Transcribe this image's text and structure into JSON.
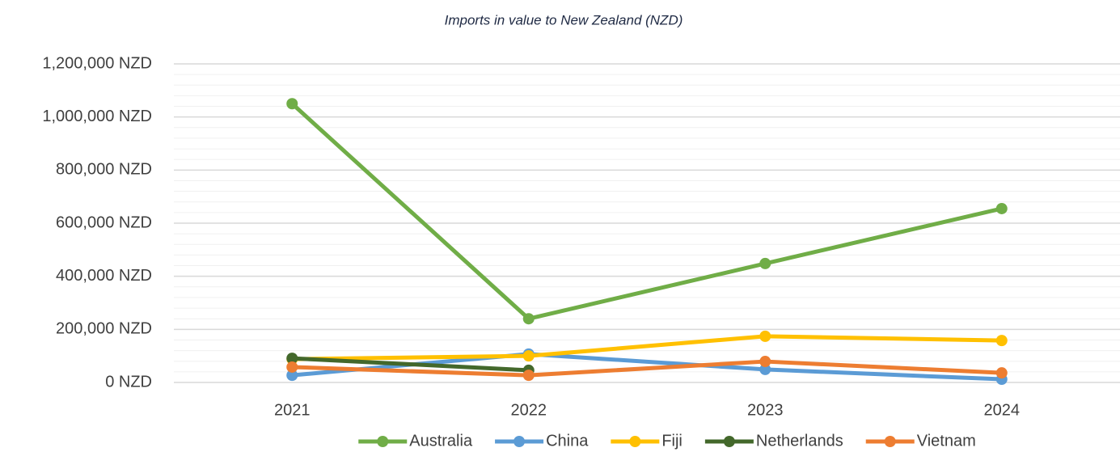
{
  "chart_data": {
    "type": "line",
    "title": "Imports in value to New Zealand (NZD)",
    "categories": [
      "2021",
      "2022",
      "2023",
      "2024"
    ],
    "series": [
      {
        "name": "Australia",
        "color": "#70ad47",
        "values": [
          1050000,
          240000,
          448000,
          655000
        ]
      },
      {
        "name": "China",
        "color": "#5b9bd5",
        "values": [
          27000,
          107000,
          49000,
          12000
        ]
      },
      {
        "name": "Fiji",
        "color": "#ffc000",
        "values": [
          88000,
          100000,
          174000,
          158000
        ]
      },
      {
        "name": "Netherlands",
        "color": "#43682b",
        "values": [
          91000,
          46000,
          null,
          null
        ]
      },
      {
        "name": "Vietnam",
        "color": "#ed7d31",
        "values": [
          58000,
          27000,
          79000,
          36000
        ]
      }
    ],
    "ylim": [
      0,
      1200000
    ],
    "yticks": [
      {
        "value": 0,
        "label": "0 NZD"
      },
      {
        "value": 200000,
        "label": "200,000 NZD"
      },
      {
        "value": 400000,
        "label": "400,000 NZD"
      },
      {
        "value": 600000,
        "label": "600,000 NZD"
      },
      {
        "value": 800000,
        "label": "800,000 NZD"
      },
      {
        "value": 1000000,
        "label": "1,000,000 NZD"
      },
      {
        "value": 1200000,
        "label": "1,200,000 NZD"
      }
    ],
    "yminorticks": [
      40000,
      80000,
      120000,
      160000,
      240000,
      280000,
      320000,
      360000,
      440000,
      480000,
      520000,
      560000,
      640000,
      680000,
      720000,
      760000,
      840000,
      880000,
      920000,
      960000,
      1040000,
      1080000,
      1120000,
      1160000
    ],
    "grid": true,
    "legend": "bottom"
  }
}
